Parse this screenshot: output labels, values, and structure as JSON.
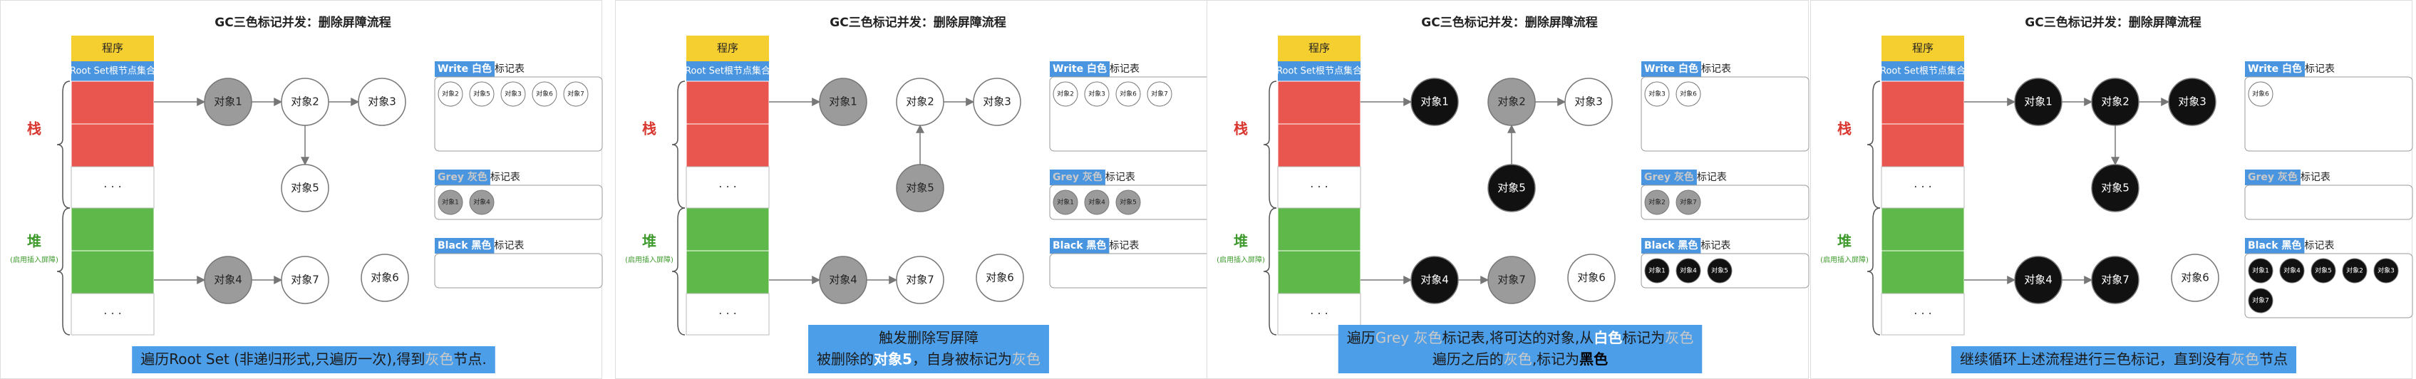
{
  "panels": [
    {
      "title": "GC三色标记并发：删除屏障流程",
      "program": "程序",
      "root_set": "Root Set根节点集合",
      "stack": "栈",
      "heap": "堆",
      "heap_note": "(启用插入屏障)",
      "ellipsis": "· · ·",
      "objects": [
        {
          "label": "对象1",
          "color": "#9b9b9b"
        },
        {
          "label": "对象2",
          "color": "#ffffff"
        },
        {
          "label": "对象3",
          "color": "#ffffff"
        },
        {
          "label": "对象4",
          "color": "#9b9b9b"
        },
        {
          "label": "对象5",
          "color": "#ffffff"
        },
        {
          "label": "对象6",
          "color": "#ffffff"
        },
        {
          "label": "对象7",
          "color": "#ffffff"
        }
      ],
      "tables": [
        {
          "name": "Write 白色",
          "suffix": "标记表",
          "color": "#ffffff",
          "item_color": "#ffffff",
          "items": [
            "对象2",
            "对象5",
            "对象3",
            "对象6",
            "对象7"
          ]
        },
        {
          "name": "Grey 灰色",
          "suffix": "标记表",
          "color": "#c9c9c9",
          "item_color": "#9b9b9b",
          "items": [
            "对象1",
            "对象4"
          ]
        },
        {
          "name": "Black 黑色",
          "suffix": "标记表",
          "color": "#ffffff",
          "item_color": "#111111",
          "items": []
        }
      ],
      "caption": [
        [
          {
            "text": "遍历Root Set (非递归形式,只遍历一次),得到"
          },
          {
            "text": "灰色",
            "color": "#c9c9c9"
          },
          {
            "text": "节点."
          }
        ]
      ]
    },
    {
      "title": "GC三色标记并发：删除屏障流程",
      "program": "程序",
      "root_set": "Root Set根节点集合",
      "stack": "栈",
      "heap": "堆",
      "heap_note": "(启用插入屏障)",
      "ellipsis": "· · ·",
      "objects": [
        {
          "label": "对象1",
          "color": "#9b9b9b"
        },
        {
          "label": "对象2",
          "color": "#ffffff"
        },
        {
          "label": "对象3",
          "color": "#ffffff"
        },
        {
          "label": "对象4",
          "color": "#9b9b9b"
        },
        {
          "label": "对象5",
          "color": "#9b9b9b"
        },
        {
          "label": "对象6",
          "color": "#ffffff"
        },
        {
          "label": "对象7",
          "color": "#ffffff"
        }
      ],
      "tables": [
        {
          "name": "Write 白色",
          "suffix": "标记表",
          "color": "#ffffff",
          "item_color": "#ffffff",
          "items": [
            "对象2",
            "对象3",
            "对象6",
            "对象7"
          ]
        },
        {
          "name": "Grey 灰色",
          "suffix": "标记表",
          "color": "#c9c9c9",
          "item_color": "#9b9b9b",
          "items": [
            "对象1",
            "对象4",
            "对象5"
          ]
        },
        {
          "name": "Black 黑色",
          "suffix": "标记表",
          "color": "#ffffff",
          "item_color": "#111111",
          "items": []
        }
      ],
      "caption": [
        [
          {
            "text": "触发删除写屏障"
          }
        ],
        [
          {
            "text": "被删除的"
          },
          {
            "text": "对象5",
            "color": "#ffffff",
            "bold": true
          },
          {
            "text": "，自身被标记为"
          },
          {
            "text": "灰色",
            "color": "#c9c9c9"
          }
        ]
      ]
    },
    {
      "title": "GC三色标记并发：删除屏障流程",
      "program": "程序",
      "root_set": "Root Set根节点集合",
      "stack": "栈",
      "heap": "堆",
      "heap_note": "(启用插入屏障)",
      "ellipsis": "· · ·",
      "objects": [
        {
          "label": "对象1",
          "color": "#111111"
        },
        {
          "label": "对象2",
          "color": "#9b9b9b"
        },
        {
          "label": "对象3",
          "color": "#ffffff"
        },
        {
          "label": "对象4",
          "color": "#111111"
        },
        {
          "label": "对象5",
          "color": "#111111"
        },
        {
          "label": "对象6",
          "color": "#ffffff"
        },
        {
          "label": "对象7",
          "color": "#9b9b9b"
        }
      ],
      "tables": [
        {
          "name": "Write 白色",
          "suffix": "标记表",
          "color": "#ffffff",
          "item_color": "#ffffff",
          "items": [
            "对象3",
            "对象6"
          ]
        },
        {
          "name": "Grey 灰色",
          "suffix": "标记表",
          "color": "#c9c9c9",
          "item_color": "#9b9b9b",
          "items": [
            "对象2",
            "对象7"
          ]
        },
        {
          "name": "Black 黑色",
          "suffix": "标记表",
          "color": "#ffffff",
          "item_color": "#111111",
          "items": [
            "对象1",
            "对象4",
            "对象5"
          ]
        }
      ],
      "caption": [
        [
          {
            "text": "遍历"
          },
          {
            "text": "Grey 灰色",
            "color": "#c9c9c9"
          },
          {
            "text": "标记表,将可达的对象,从"
          },
          {
            "text": "白色",
            "color": "#ffffff",
            "bold": true
          },
          {
            "text": "标记为"
          },
          {
            "text": "灰色",
            "color": "#c9c9c9"
          }
        ],
        [
          {
            "text": "遍历之后的"
          },
          {
            "text": "灰色",
            "color": "#c9c9c9"
          },
          {
            "text": ",标记为"
          },
          {
            "text": "黑色",
            "color": "#000000",
            "bold": true
          }
        ]
      ]
    },
    {
      "title": "GC三色标记并发：删除屏障流程",
      "program": "程序",
      "root_set": "Root Set根节点集合",
      "stack": "栈",
      "heap": "堆",
      "heap_note": "(启用插入屏障)",
      "ellipsis": "· · ·",
      "objects": [
        {
          "label": "对象1",
          "color": "#111111"
        },
        {
          "label": "对象2",
          "color": "#111111"
        },
        {
          "label": "对象3",
          "color": "#111111"
        },
        {
          "label": "对象4",
          "color": "#111111"
        },
        {
          "label": "对象5",
          "color": "#111111"
        },
        {
          "label": "对象6",
          "color": "#ffffff"
        },
        {
          "label": "对象7",
          "color": "#111111"
        }
      ],
      "tables": [
        {
          "name": "Write 白色",
          "suffix": "标记表",
          "color": "#ffffff",
          "item_color": "#ffffff",
          "items": [
            "对象6"
          ]
        },
        {
          "name": "Grey 灰色",
          "suffix": "标记表",
          "color": "#c9c9c9",
          "item_color": "#9b9b9b",
          "items": []
        },
        {
          "name": "Black 黑色",
          "suffix": "标记表",
          "color": "#ffffff",
          "item_color": "#111111",
          "items": [
            "对象1",
            "对象4",
            "对象5",
            "对象2",
            "对象3",
            "对象7"
          ]
        }
      ],
      "caption": [
        [
          {
            "text": "继续循环上述流程进行三色标记，直到没有"
          },
          {
            "text": "灰色",
            "color": "#c9c9c9"
          },
          {
            "text": "节点"
          }
        ]
      ]
    }
  ]
}
